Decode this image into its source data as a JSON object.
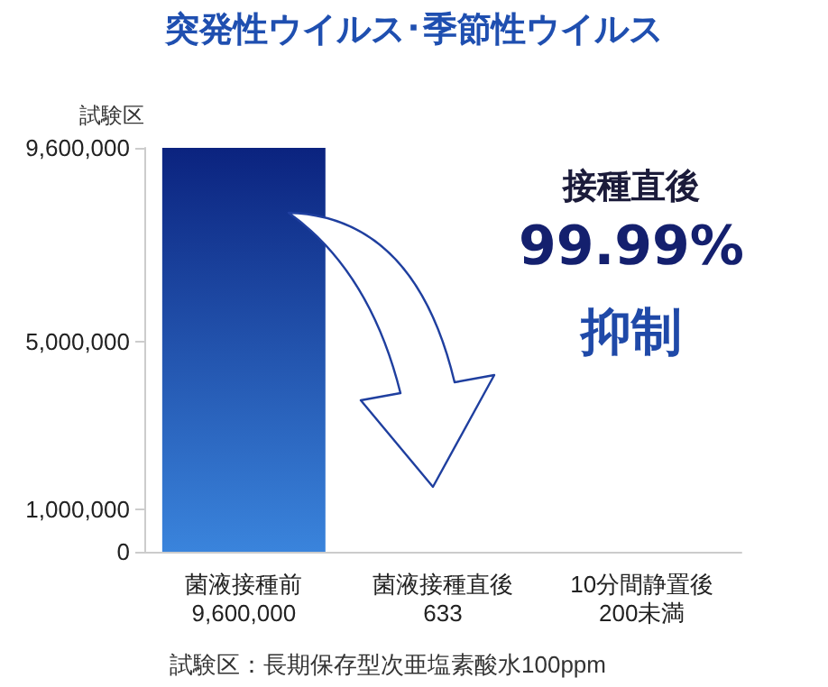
{
  "chart_data": {
    "type": "bar",
    "title": "突発性ウイルス･季節性ウイルス",
    "ylabel": "試験区",
    "categories": [
      "菌液接種前",
      "菌液接種直後",
      "10分間静置後"
    ],
    "values": [
      9600000,
      633,
      200
    ],
    "value_labels": [
      "9,600,000",
      "633",
      "200未満"
    ],
    "colors": [
      "#2a5bc0",
      "#0e1250",
      "#0e1250"
    ],
    "ylim": [
      0,
      9600000
    ],
    "yticks": [
      0,
      {
        "value": 1000000,
        "label": "1,000,000"
      },
      {
        "value": 5000000,
        "label": "5,000,000"
      },
      {
        "value": 9600000,
        "label": "9,600,000"
      }
    ],
    "grid": false,
    "annotations": [
      "接種直後",
      "99.99%",
      "抑制",
      "試験区：長期保存型次亜塩素酸水100ppm"
    ]
  }
}
